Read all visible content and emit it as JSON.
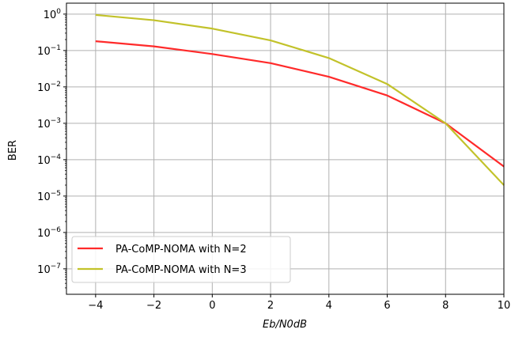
{
  "chart_data": {
    "type": "line",
    "title": "",
    "xlabel": "Eb/N0dB",
    "ylabel": "BER",
    "xlim": [
      -5,
      10
    ],
    "ylim": [
      2e-08,
      2
    ],
    "yscale": "log",
    "grid": true,
    "legend_position": "lower-left",
    "x_ticks": [
      -4,
      -2,
      0,
      2,
      4,
      6,
      8,
      10
    ],
    "x_tick_labels": [
      "−4",
      "−2",
      "0",
      "2",
      "4",
      "6",
      "8",
      "10"
    ],
    "y_ticks": [
      1e-07,
      1e-06,
      1e-05,
      0.0001,
      0.001,
      0.01,
      0.1,
      1
    ],
    "y_tick_exponents": [
      "−7",
      "−6",
      "−5",
      "−4",
      "−3",
      "−2",
      "−1",
      "0"
    ],
    "x": [
      -4,
      -2,
      0,
      2,
      4,
      6,
      8,
      10
    ],
    "series": [
      {
        "name": "PA-CoMP-NOMA with N=2",
        "color": "#ff2a2a",
        "values": [
          0.18,
          0.13,
          0.08,
          0.045,
          0.019,
          0.0058,
          0.001,
          6.5e-05
        ]
      },
      {
        "name": "PA-CoMP-NOMA with N=3",
        "color": "#c2c22a",
        "values": [
          0.95,
          0.68,
          0.4,
          0.19,
          0.062,
          0.012,
          0.001,
          2e-05
        ]
      }
    ]
  }
}
